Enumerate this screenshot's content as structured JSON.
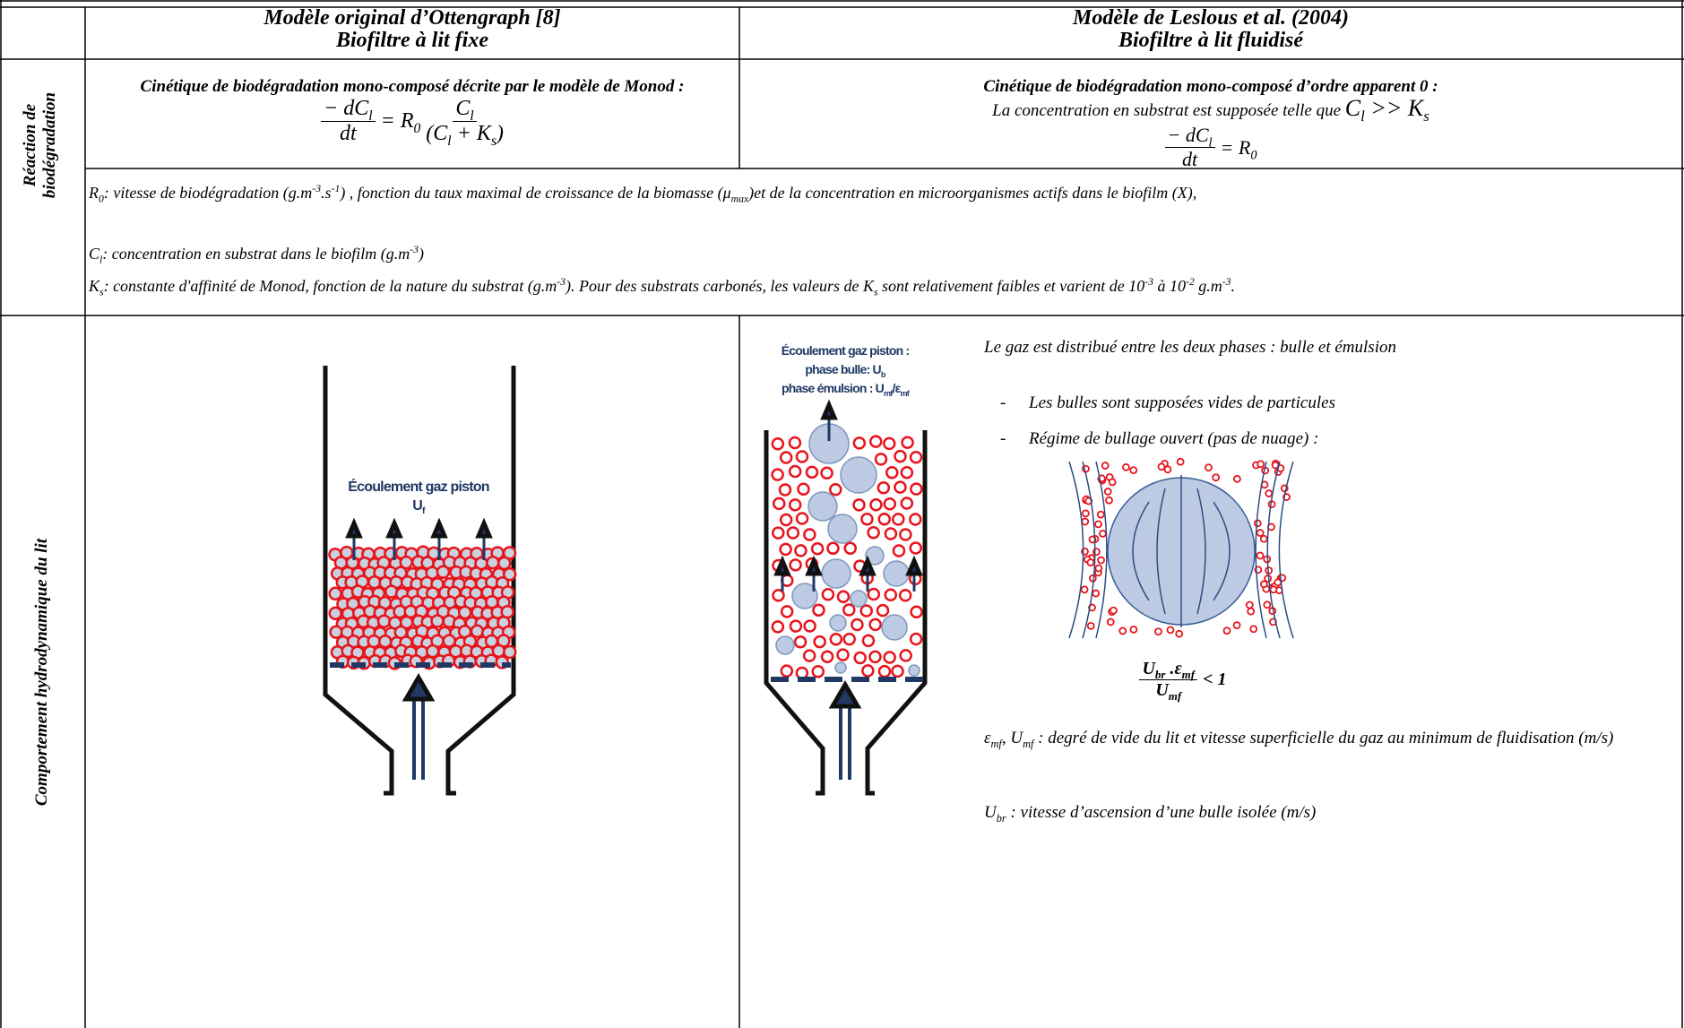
{
  "header": {
    "left_title": [
      "Modèle original d’Ottengraph [8]",
      "Biofiltre à lit fixe"
    ],
    "right_title": [
      "Modèle de Leslous et al. (2004)",
      "Biofiltre à lit fluidisé"
    ]
  },
  "reaction": {
    "label": "Réaction de biodégradation",
    "left": {
      "heading": "Cinétique de biodégradation mono-composé décrite par le modèle de Monod :",
      "equation": [
        "− dC",
        "l",
        "dt",
        "= R",
        "0",
        "C",
        "l",
        "(C",
        "l",
        " + K",
        "s",
        ")"
      ]
    },
    "right": {
      "heading": "Cinétique de biodégradation mono-composé d’ordre apparent 0 :",
      "condition_text": "La concentration en substrat est supposée telle que",
      "condition": [
        "C",
        "l",
        " >> K",
        "s"
      ],
      "equation": [
        "− dC",
        "l",
        "dt",
        "= R",
        "0"
      ]
    },
    "definitions": [
      [
        "R",
        "0",
        ": vitesse de biodégradation (g.m",
        "-3",
        ".s",
        "-1",
        ") , fonction du taux maximal de croissance de la biomasse (",
        "μ",
        "max",
        ")et de la concentration en microorganismes actifs dans le biofilm (X),"
      ],
      [
        "C",
        "l",
        ": concentration en substrat dans le biofilm (g.m",
        "-3",
        ")"
      ],
      [
        "K",
        "s",
        ": constante d'affinité de Monod, fonction de la nature du substrat (g.m",
        "-3",
        "). Pour des substrats carbonés, les valeurs de K",
        "s",
        " sont relativement faibles et varient de 10",
        "-3",
        " à 10",
        "-2",
        " g.m",
        "-3",
        "."
      ]
    ]
  },
  "hydro": {
    "label": "Comportement hydrodynamique du lit",
    "fixed_bed_label": [
      "Écoulement gaz piston",
      "U",
      "f"
    ],
    "fluid_bed_label": [
      "Écoulement gaz piston :",
      "phase bulle: U",
      "b",
      "phase émulsion : U",
      "mf",
      "/ε",
      "mf"
    ],
    "intro": "Le gaz est distribué entre les deux phases : bulle et émulsion",
    "bullet_marker": "-",
    "bullets": [
      "Les bulles sont supposées vides de particules",
      "Régime de bullage ouvert (pas de nuage) :"
    ],
    "formula": [
      "U",
      "br",
      " .ε",
      "mf",
      "U",
      "mf",
      "< 1"
    ],
    "note_eps": [
      "ε",
      "mf",
      ", U",
      "mf",
      " : degré de vide du lit et vitesse superficielle du gaz au minimum de fluidisation (m/s)"
    ],
    "note_ubr": [
      "U",
      "br",
      " : vitesse d’ascension d’une bulle isolée (m/s)"
    ]
  }
}
